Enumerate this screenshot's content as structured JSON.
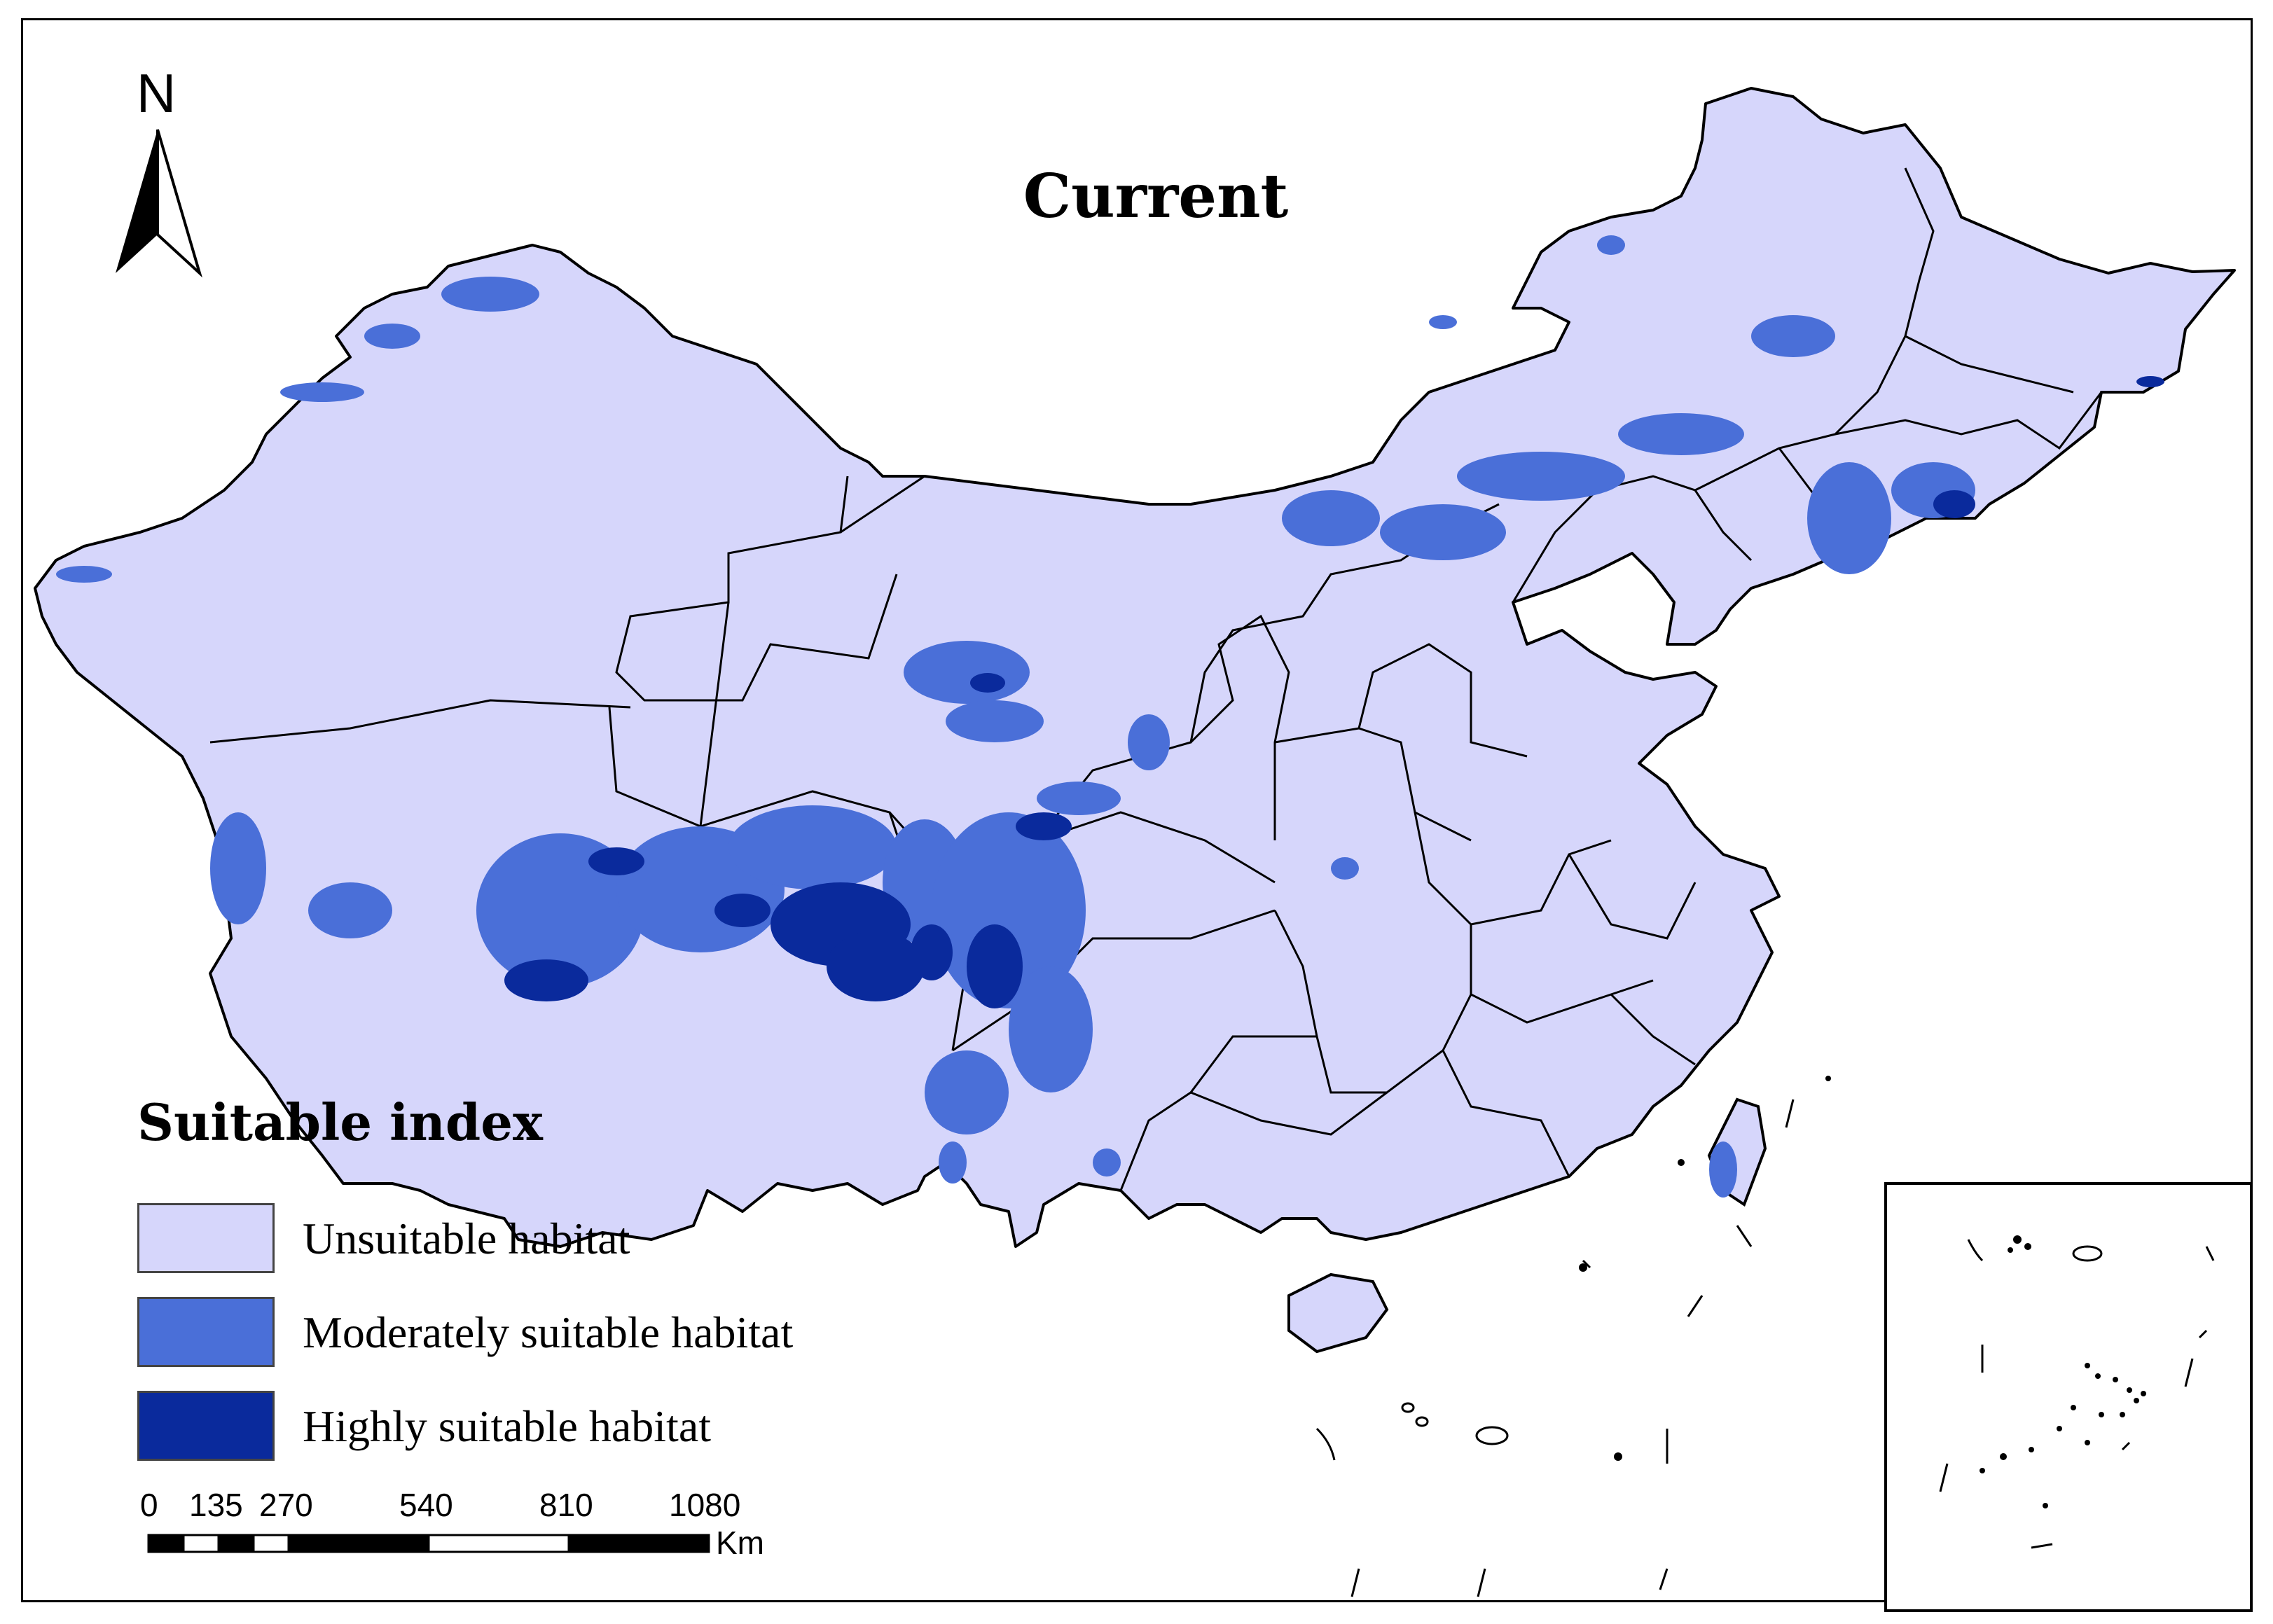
{
  "map": {
    "title": "Current",
    "north_arrow": {
      "label": "N"
    },
    "colors": {
      "unsuitable": "#d6d6fb",
      "moderate": "#4a6fd8",
      "high": "#0a2a9c",
      "boundary": "#000000"
    }
  },
  "legend": {
    "title": "Suitable index",
    "items": [
      {
        "label": "Unsuitable habitat",
        "color": "#d6d6fb"
      },
      {
        "label": "Moderately suitable habitat",
        "color": "#4a6fd8"
      },
      {
        "label": "Highly suitable habitat",
        "color": "#0a2a9c"
      }
    ]
  },
  "scale_bar": {
    "ticks": [
      "0",
      "135",
      "270",
      "540",
      "810",
      "1080"
    ],
    "unit": "Km"
  }
}
